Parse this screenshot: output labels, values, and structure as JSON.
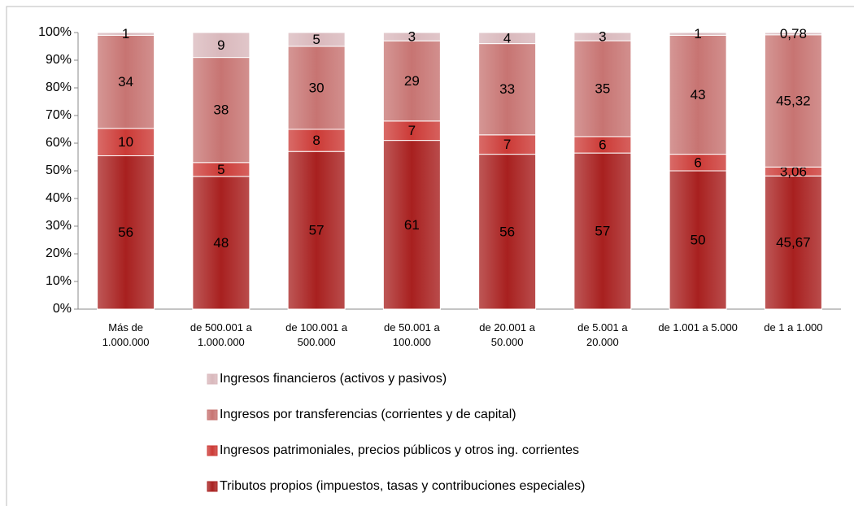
{
  "chart_data": {
    "type": "bar",
    "stack": "percent",
    "categories": [
      "Más de\n1.000.000",
      "de 500.001 a\n1.000.000",
      "de 100.001 a\n500.000",
      "de 50.001 a\n100.000",
      "de 20.001 a\n50.000",
      "de 5.001 a\n20.000",
      "de 1.001 a 5.000",
      "de 1 a 1.000"
    ],
    "series": [
      {
        "name": "Tributos propios (impuestos, tasas y contribuciones especiales)",
        "color": "#a8201f",
        "values": [
          56,
          48,
          57,
          61,
          56,
          57,
          50,
          45.67
        ],
        "value_labels": [
          "56",
          "48",
          "57",
          "61",
          "56",
          "57",
          "50",
          "45,67"
        ]
      },
      {
        "name": "Ingresos patrimoniales, precios públicos y otros ing. corrientes",
        "color": "#cc3a36",
        "values": [
          10,
          5,
          8,
          7,
          7,
          6,
          6,
          3.06
        ],
        "value_labels": [
          "10",
          "5",
          "8",
          "7",
          "7",
          "6",
          "6",
          "3,06"
        ]
      },
      {
        "name": "Ingresos por transferencias (corrientes y de capital)",
        "color": "#c77472",
        "values": [
          34,
          38,
          30,
          29,
          33,
          35,
          43,
          45.32
        ],
        "value_labels": [
          "34",
          "38",
          "30",
          "29",
          "33",
          "35",
          "43",
          "45,32"
        ]
      },
      {
        "name": "Ingresos financieros (activos y pasivos)",
        "color": "#d9b8bc",
        "values": [
          1,
          9,
          5,
          3,
          4,
          3,
          1,
          0.78
        ],
        "value_labels": [
          "1",
          "9",
          "5",
          "3",
          "4",
          "3",
          "1",
          "0,78"
        ]
      }
    ],
    "ylim": [
      0,
      100
    ],
    "yticks": [
      {
        "value": 0,
        "label": "0%"
      },
      {
        "value": 10,
        "label": "10%"
      },
      {
        "value": 20,
        "label": "20%"
      },
      {
        "value": 30,
        "label": "30%"
      },
      {
        "value": 40,
        "label": "40%"
      },
      {
        "value": 50,
        "label": "50%"
      },
      {
        "value": 60,
        "label": "60%"
      },
      {
        "value": 70,
        "label": "70%"
      },
      {
        "value": 80,
        "label": "80%"
      },
      {
        "value": 90,
        "label": "90%"
      },
      {
        "value": 100,
        "label": "100%"
      }
    ],
    "grid": false,
    "legend": "bottom"
  }
}
